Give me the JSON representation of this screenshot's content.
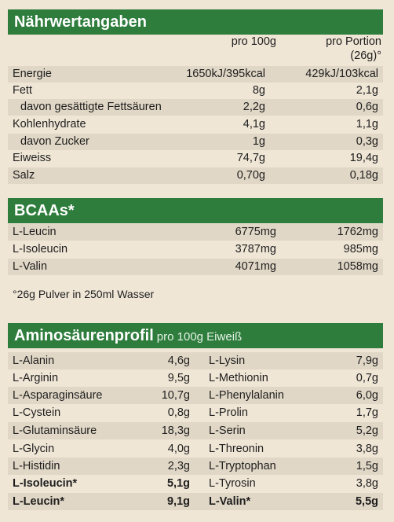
{
  "naehrwert": {
    "title": "Nährwertangaben",
    "col1": "pro 100g",
    "col2_line1": "pro Portion",
    "col2_line2": "(26g)°",
    "rows": [
      {
        "label": "Energie",
        "v1": "1650kJ/395kcal",
        "v2": "429kJ/103kcal"
      },
      {
        "label": "Fett",
        "v1": "8g",
        "v2": "2,1g"
      },
      {
        "label": "davon gesättigte Fettsäuren",
        "v1": "2,2g",
        "v2": "0,6g"
      },
      {
        "label": "Kohlenhydrate",
        "v1": "4,1g",
        "v2": "1,1g"
      },
      {
        "label": "davon Zucker",
        "v1": "1g",
        "v2": "0,3g"
      },
      {
        "label": "Eiweiss",
        "v1": "74,7g",
        "v2": "19,4g"
      },
      {
        "label": "Salz",
        "v1": "0,70g",
        "v2": "0,18g"
      }
    ]
  },
  "bcaa": {
    "title": "BCAAs*",
    "rows": [
      {
        "label": "L-Leucin",
        "v1": "6775mg",
        "v2": "1762mg"
      },
      {
        "label": "L-Isoleucin",
        "v1": "3787mg",
        "v2": "985mg"
      },
      {
        "label": "L-Valin",
        "v1": "4071mg",
        "v2": "1058mg"
      }
    ]
  },
  "footnote": "°26g Pulver in 250ml Wasser",
  "amino": {
    "title": "Aminosäurenprofil",
    "subtitle": "pro 100g Eiweiß",
    "rows": [
      {
        "l1": "L-Alanin",
        "v1": "4,6g",
        "l2": "L-Lysin",
        "v2": "7,9g"
      },
      {
        "l1": "L-Arginin",
        "v1": "9,5g",
        "l2": "L-Methionin",
        "v2": "0,7g"
      },
      {
        "l1": "L-Asparaginsäure",
        "v1": "10,7g",
        "l2": "L-Phenylalanin",
        "v2": "6,0g"
      },
      {
        "l1": "L-Cystein",
        "v1": "0,8g",
        "l2": "L-Prolin",
        "v2": "1,7g"
      },
      {
        "l1": "L-Glutaminsäure",
        "v1": "18,3g",
        "l2": "L-Serin",
        "v2": "5,2g"
      },
      {
        "l1": "L-Glycin",
        "v1": "4,0g",
        "l2": "L-Threonin",
        "v2": "3,8g"
      },
      {
        "l1": "L-Histidin",
        "v1": "2,3g",
        "l2": "L-Tryptophan",
        "v2": "1,5g"
      },
      {
        "l1": "L-Isoleucin*",
        "v1": "5,1g",
        "l2": "L-Tyrosin",
        "v2": "3,8g"
      },
      {
        "l1": "L-Leucin*",
        "v1": "9,1g",
        "l2": "L-Valin*",
        "v2": "5,5g"
      }
    ]
  }
}
